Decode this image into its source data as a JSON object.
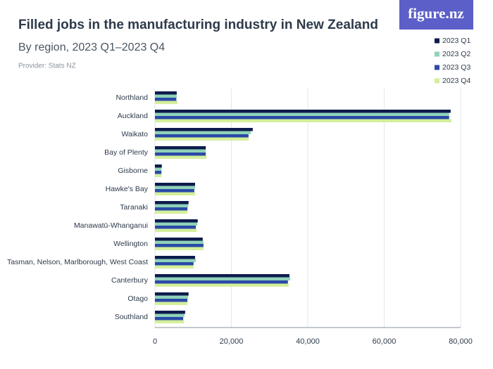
{
  "brand": "figure.nz",
  "chart_data": {
    "type": "hbar",
    "title": "Filled jobs in the manufacturing industry in New Zealand",
    "subtitle": "By region, 2023 Q1–2023 Q4",
    "provider": "Provider: Stats NZ",
    "categories": [
      "Northland",
      "Auckland",
      "Waikato",
      "Bay of Plenty",
      "Gisborne",
      "Hawke's Bay",
      "Taranaki",
      "Manawatū-Whanganui",
      "Wellington",
      "Tasman, Nelson, Marlborough, West Coast",
      "Canterbury",
      "Otago",
      "Southland"
    ],
    "series": [
      {
        "name": "2023 Q1",
        "color": "#0d1b4c",
        "values": [
          5700,
          77400,
          25600,
          13300,
          1800,
          10500,
          8800,
          11200,
          12500,
          10500,
          35200,
          8800,
          7900
        ]
      },
      {
        "name": "2023 Q2",
        "color": "#8fd2b9",
        "values": [
          5700,
          77000,
          25100,
          13300,
          1700,
          10500,
          8700,
          11100,
          12700,
          10700,
          35400,
          8700,
          7700
        ]
      },
      {
        "name": "2023 Q3",
        "color": "#2a4aa8",
        "values": [
          5600,
          77000,
          24500,
          13300,
          1700,
          10300,
          8500,
          10700,
          12700,
          10100,
          34800,
          8500,
          7400
        ]
      },
      {
        "name": "2023 Q4",
        "color": "#d4ef9a",
        "values": [
          5900,
          77600,
          24500,
          13500,
          1700,
          10500,
          8500,
          10900,
          12700,
          10100,
          35000,
          8500,
          7600
        ]
      }
    ],
    "xlim": [
      0,
      80000
    ],
    "xticks": [
      0,
      {
        "value": 20000,
        "label": "20,000"
      },
      {
        "value": 40000,
        "label": "40,000"
      },
      {
        "value": 60000,
        "label": "60,000"
      },
      {
        "value": 80000,
        "label": "80,000"
      }
    ],
    "grid": true,
    "legend": "top-right"
  }
}
